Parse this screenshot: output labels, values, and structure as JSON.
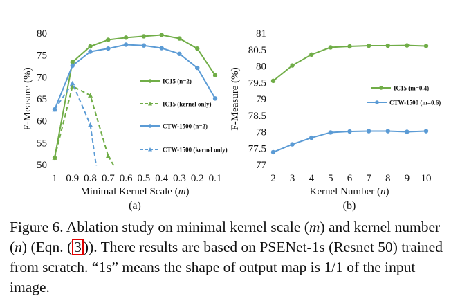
{
  "chart_data": [
    {
      "type": "line",
      "panel_label": "(a)",
      "xlabel_prefix": "Minimal Kernel Scale (",
      "xlabel_var": "m",
      "xlabel_suffix": ")",
      "ylabel": "F-Measure (%)",
      "categories": [
        "1",
        "0.9",
        "0.8",
        "0.7",
        "0.6",
        "0.5",
        "0.4",
        "0.3",
        "0.2",
        "0.1"
      ],
      "ylim": [
        50,
        80
      ],
      "yticks": [
        50,
        55,
        60,
        65,
        70,
        75,
        80
      ],
      "series": [
        {
          "name": "IC15 (n=2)",
          "color": "#70ad47",
          "dashed": false,
          "values": [
            51.6,
            73.4,
            77.0,
            78.5,
            79.0,
            79.3,
            79.6,
            78.8,
            76.5,
            70.4
          ]
        },
        {
          "name": "IC15 (kernel only)",
          "color": "#70ad47",
          "dashed": true,
          "values": [
            51.6,
            67.9,
            65.8,
            52.0,
            null,
            null,
            null,
            null,
            null,
            null
          ],
          "tail_to": [
            4.0,
            45.0
          ]
        },
        {
          "name": "CTW-1500 (n=2)",
          "color": "#5b9bd5",
          "dashed": false,
          "values": [
            62.6,
            72.6,
            75.8,
            76.5,
            77.4,
            77.2,
            76.6,
            75.3,
            72.1,
            65.1
          ]
        },
        {
          "name": "CTW-1500 (kernel only)",
          "color": "#5b9bd5",
          "dashed": true,
          "values": [
            62.6,
            68.6,
            59.1,
            null,
            null,
            null,
            null,
            null,
            null,
            null
          ],
          "tail_to": [
            2.5,
            45.0
          ]
        }
      ]
    },
    {
      "type": "line",
      "panel_label": "(b)",
      "xlabel_prefix": "Kernel Number (",
      "xlabel_var": "n",
      "xlabel_suffix": ")",
      "ylabel": "F-Measure (%)",
      "categories": [
        "2",
        "3",
        "4",
        "5",
        "6",
        "7",
        "8",
        "9",
        "10"
      ],
      "ylim": [
        77,
        81
      ],
      "yticks": [
        "77",
        "77.5",
        "78",
        "78.5",
        "79",
        "79.5",
        "80",
        "80.5",
        "81"
      ],
      "series": [
        {
          "name": "IC15 (m=0.4)",
          "color": "#70ad47",
          "dashed": false,
          "values": [
            79.55,
            80.02,
            80.35,
            80.57,
            80.6,
            80.62,
            80.62,
            80.63,
            80.61
          ]
        },
        {
          "name": "CTW-1500 (m=0.6)",
          "color": "#5b9bd5",
          "dashed": false,
          "values": [
            77.38,
            77.62,
            77.82,
            77.98,
            78.01,
            78.02,
            78.02,
            78.0,
            78.02
          ]
        }
      ]
    }
  ],
  "caption": {
    "part1": "Figure 6. Ablation study on minimal kernel scale (",
    "var_m": "m",
    "part2": ") and kernel number (",
    "var_n": "n",
    "part3": ") (Eqn. (",
    "eqn_ref": "3",
    "part4": ")). There results are based on PSENet-1s (Resnet 50) trained from scratch. “1s” means the shape of output map is 1/1 of the input image."
  }
}
